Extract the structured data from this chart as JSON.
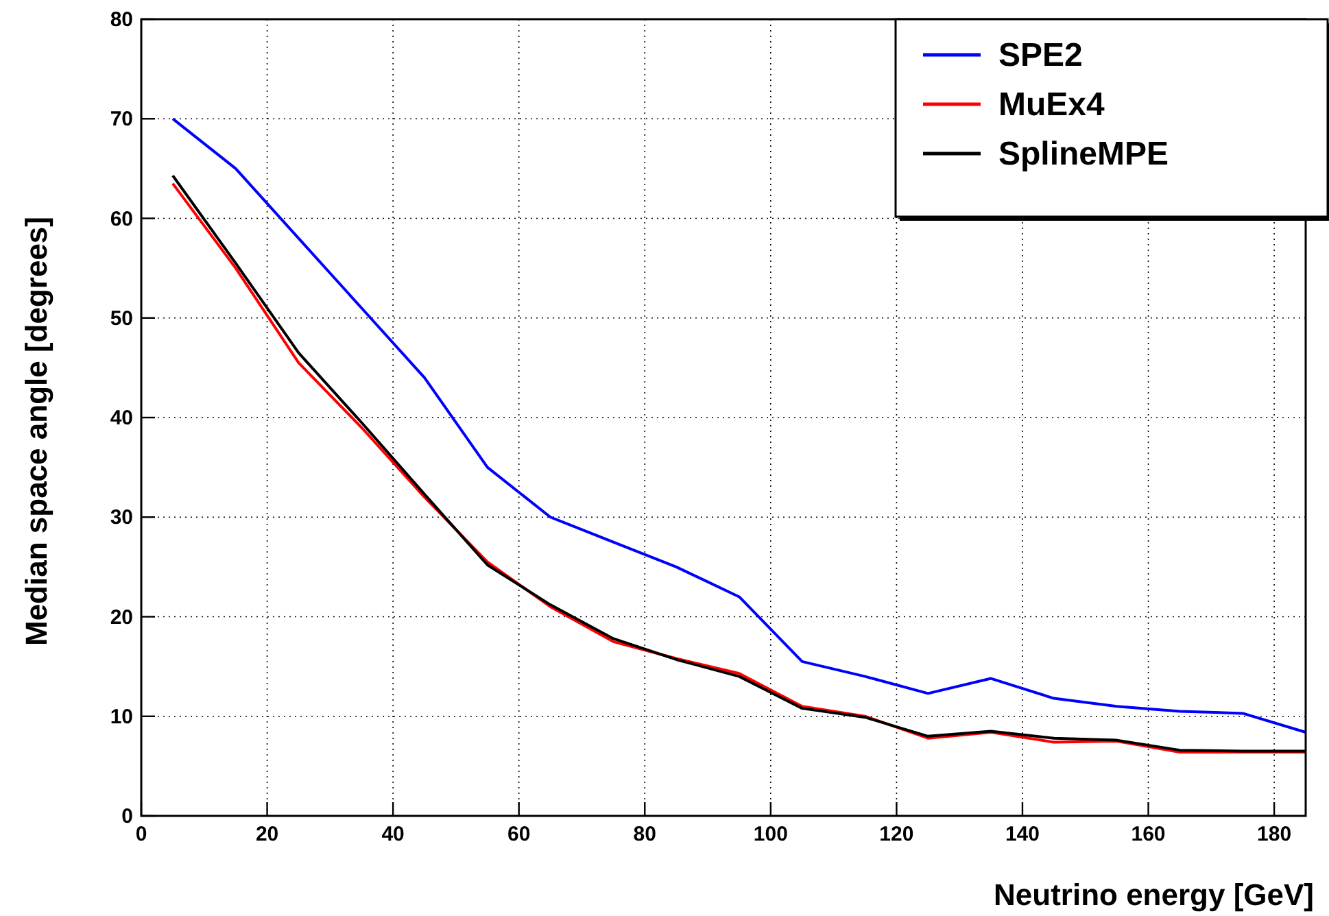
{
  "chart_data": {
    "type": "line",
    "xlabel": "Neutrino energy [GeV]",
    "ylabel": "Median space angle [degrees]",
    "x": [
      5,
      15,
      25,
      35,
      45,
      55,
      65,
      75,
      85,
      95,
      105,
      115,
      125,
      135,
      145,
      155,
      165,
      175,
      185
    ],
    "series": [
      {
        "name": "SPE2",
        "color": "#0000ff",
        "values": [
          70,
          65,
          58,
          51,
          44,
          35,
          30,
          27.5,
          25,
          22,
          15.5,
          14,
          12.3,
          13.8,
          11.8,
          11,
          10.5,
          10.3,
          8.4
        ]
      },
      {
        "name": "MuEx4",
        "color": "#ff0000",
        "values": [
          63.5,
          55,
          45.5,
          39,
          32,
          25.5,
          21,
          17.5,
          15.8,
          14.3,
          11,
          10,
          7.8,
          8.4,
          7.4,
          7.5,
          6.4,
          6.4,
          6.4
        ]
      },
      {
        "name": "SplineMPE",
        "color": "#000000",
        "values": [
          64.3,
          55.5,
          46.5,
          39.5,
          32.3,
          25.2,
          21.2,
          17.8,
          15.7,
          14,
          10.8,
          9.9,
          8,
          8.5,
          7.8,
          7.6,
          6.6,
          6.5,
          6.5
        ]
      }
    ],
    "xlim": [
      0,
      185
    ],
    "xticks": [
      0,
      20,
      40,
      60,
      80,
      100,
      120,
      140,
      160,
      180
    ],
    "ylim": [
      0,
      80
    ],
    "yticks": [
      0,
      10,
      20,
      30,
      40,
      50,
      60,
      70,
      80
    ],
    "grid": true,
    "legend": "top right",
    "marker": "none",
    "line_style": "solid"
  }
}
